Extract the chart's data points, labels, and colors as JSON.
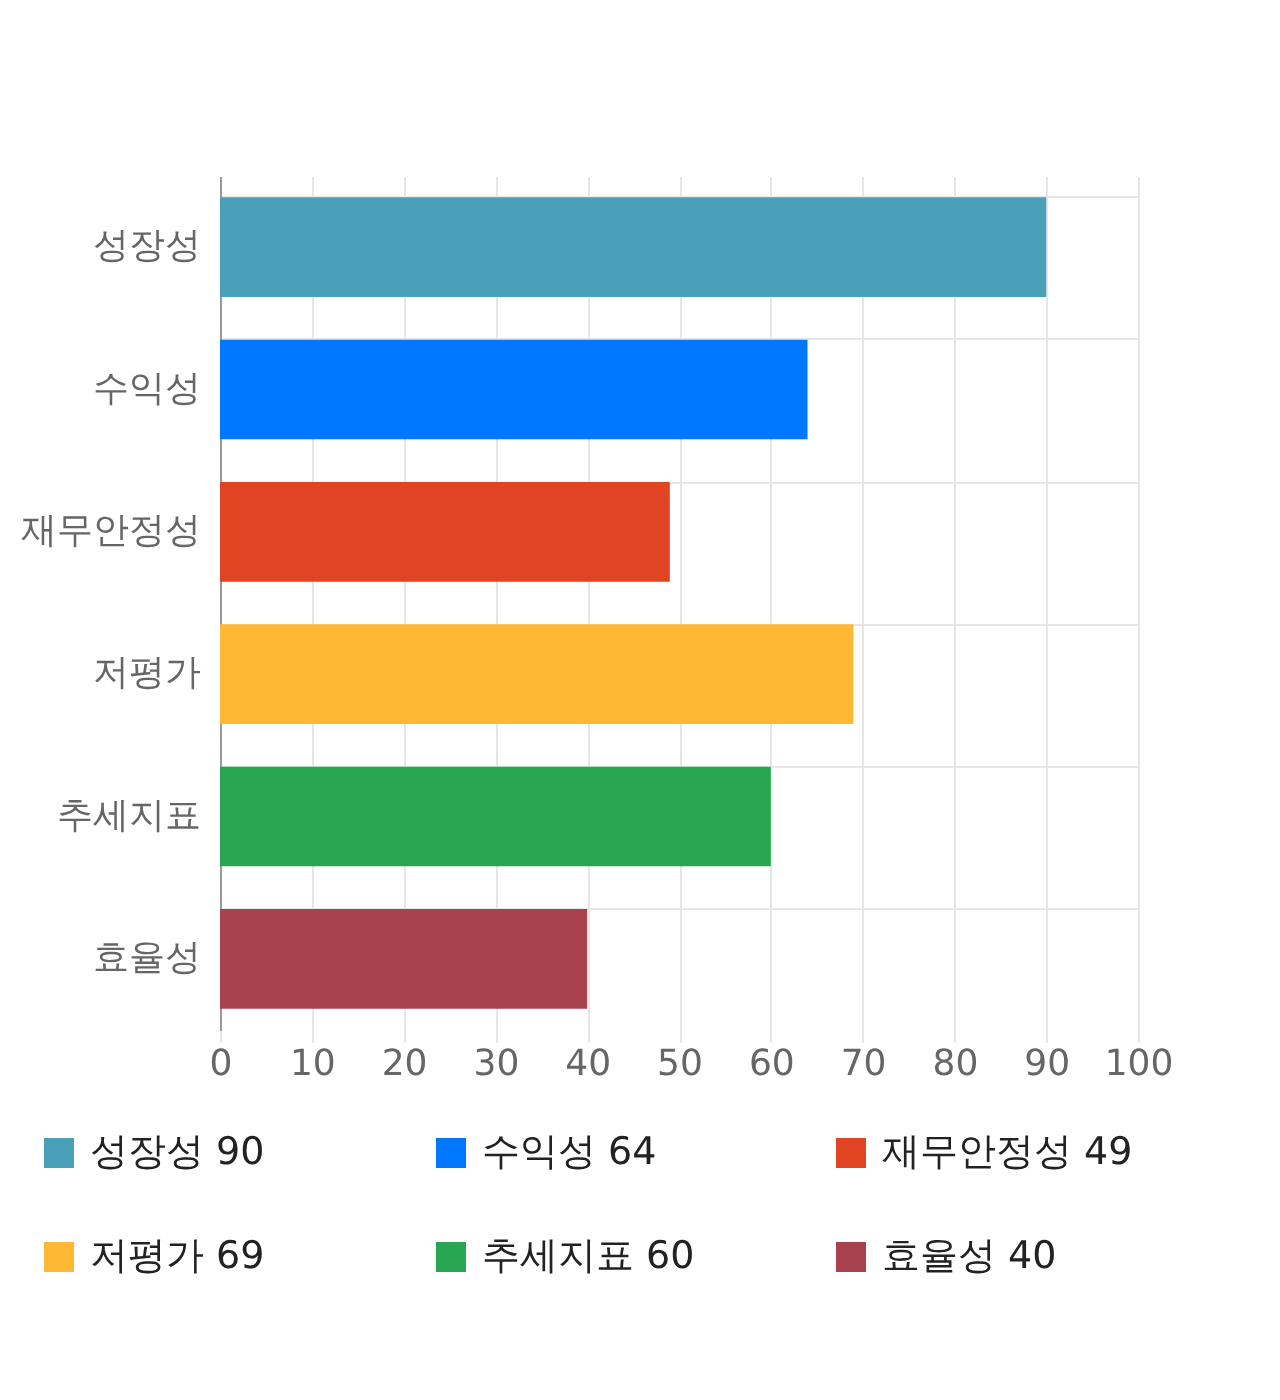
{
  "chart_data": {
    "type": "bar",
    "orientation": "horizontal",
    "categories": [
      "성장성",
      "수익성",
      "재무안정성",
      "저평가",
      "추세지표",
      "효율성"
    ],
    "values": [
      90,
      64,
      49,
      69,
      60,
      40
    ],
    "colors": [
      "#4aa0b8",
      "#0077ff",
      "#e04423",
      "#ffb833",
      "#28a652",
      "#a8424f"
    ],
    "xlim": [
      0,
      100
    ],
    "xticks": [
      0,
      10,
      20,
      30,
      40,
      50,
      60,
      70,
      80,
      90,
      100
    ],
    "annotations": [
      "성장성 90",
      "수익성 64",
      "재무안정성 49",
      "저평가 69",
      "추세지표 60",
      "효율성 40"
    ],
    "grid": true
  }
}
